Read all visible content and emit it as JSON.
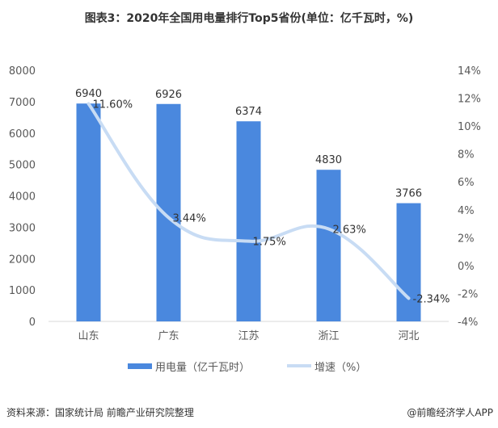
{
  "chart_data": {
    "type": "bar+line",
    "title": "图表3：2020年全国用电量排行Top5省份(单位：亿千瓦时，%)",
    "categories": [
      "山东",
      "广东",
      "江苏",
      "浙江",
      "河北"
    ],
    "series": [
      {
        "name": "用电量（亿千瓦时）",
        "type": "bar",
        "axis": "left",
        "values": [
          6940,
          6926,
          6374,
          4830,
          3766
        ],
        "labels": [
          "6940",
          "6926",
          "6374",
          "4830",
          "3766"
        ]
      },
      {
        "name": "增速（%）",
        "type": "line",
        "axis": "right",
        "values": [
          11.6,
          3.44,
          1.75,
          2.63,
          -2.34
        ],
        "labels": [
          "11.60%",
          "3.44%",
          "1.75%",
          "2.63%",
          "-2.34%"
        ]
      }
    ],
    "left_axis": {
      "ylim": [
        0,
        8000
      ],
      "ticks": [
        "0",
        "1000",
        "2000",
        "3000",
        "4000",
        "5000",
        "6000",
        "7000",
        "8000"
      ]
    },
    "right_axis": {
      "ylim": [
        -4,
        14
      ],
      "ticks": [
        "-4%",
        "-2%",
        "0%",
        "2%",
        "4%",
        "6%",
        "8%",
        "10%",
        "12%",
        "14%"
      ]
    },
    "grid": false,
    "legend": "bottom",
    "colors": {
      "bar": "#4a88de",
      "line": "#c8dcf4",
      "text": "#595959"
    }
  },
  "footer": {
    "source": "资料来源：国家统计局 前瞻产业研究院整理",
    "credit": "@前瞻经济学人APP"
  }
}
